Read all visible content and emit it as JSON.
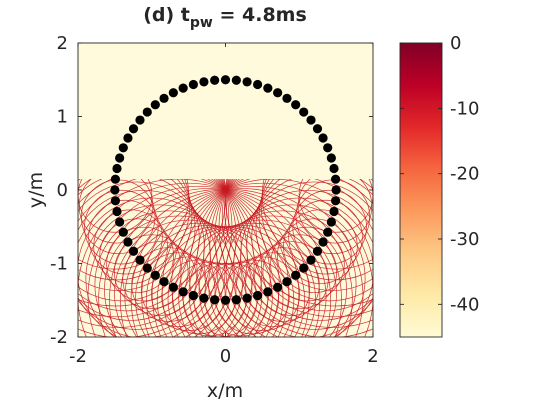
{
  "chart_data": {
    "type": "contour",
    "title": {
      "prefix": "(d) t",
      "subscript": "pw",
      "suffix": " = 4.8ms"
    },
    "xlabel": "x/m",
    "ylabel": "y/m",
    "xlim": [
      -2,
      2
    ],
    "ylim": [
      -2,
      2
    ],
    "xticks": [
      -2,
      0,
      2
    ],
    "yticks": [
      -2,
      -1,
      0,
      1,
      2
    ],
    "xtick_labels": [
      "-2",
      "0",
      "2"
    ],
    "ytick_labels": [
      "-2",
      "-1",
      "0",
      "1",
      "2"
    ],
    "grid": false,
    "background_color": "#fffadb",
    "contour_color": "#c81a22",
    "marker_color": "#000000",
    "transducer_array": {
      "center": [
        0,
        0
      ],
      "radius": 1.5,
      "count": 64,
      "marker": "filled-circle"
    },
    "wavefronts": {
      "emitter_y_range": [
        -1.5,
        0
      ],
      "emitter_count": 32,
      "radii": [
        0.5,
        1.0,
        1.5
      ],
      "clip_y_max": 0.15
    },
    "colorbar": {
      "colormap": "YlOrRd",
      "range": [
        -45,
        0
      ],
      "ticks": [
        0,
        -10,
        -20,
        -30,
        -40
      ],
      "tick_labels": [
        "0",
        "-10",
        "-20",
        "-30",
        "-40"
      ],
      "color_stops": [
        "#fffbd6",
        "#fee9a6",
        "#fdc985",
        "#fc9a5e",
        "#f6663f",
        "#e3282a",
        "#bd0026",
        "#800026"
      ]
    }
  }
}
